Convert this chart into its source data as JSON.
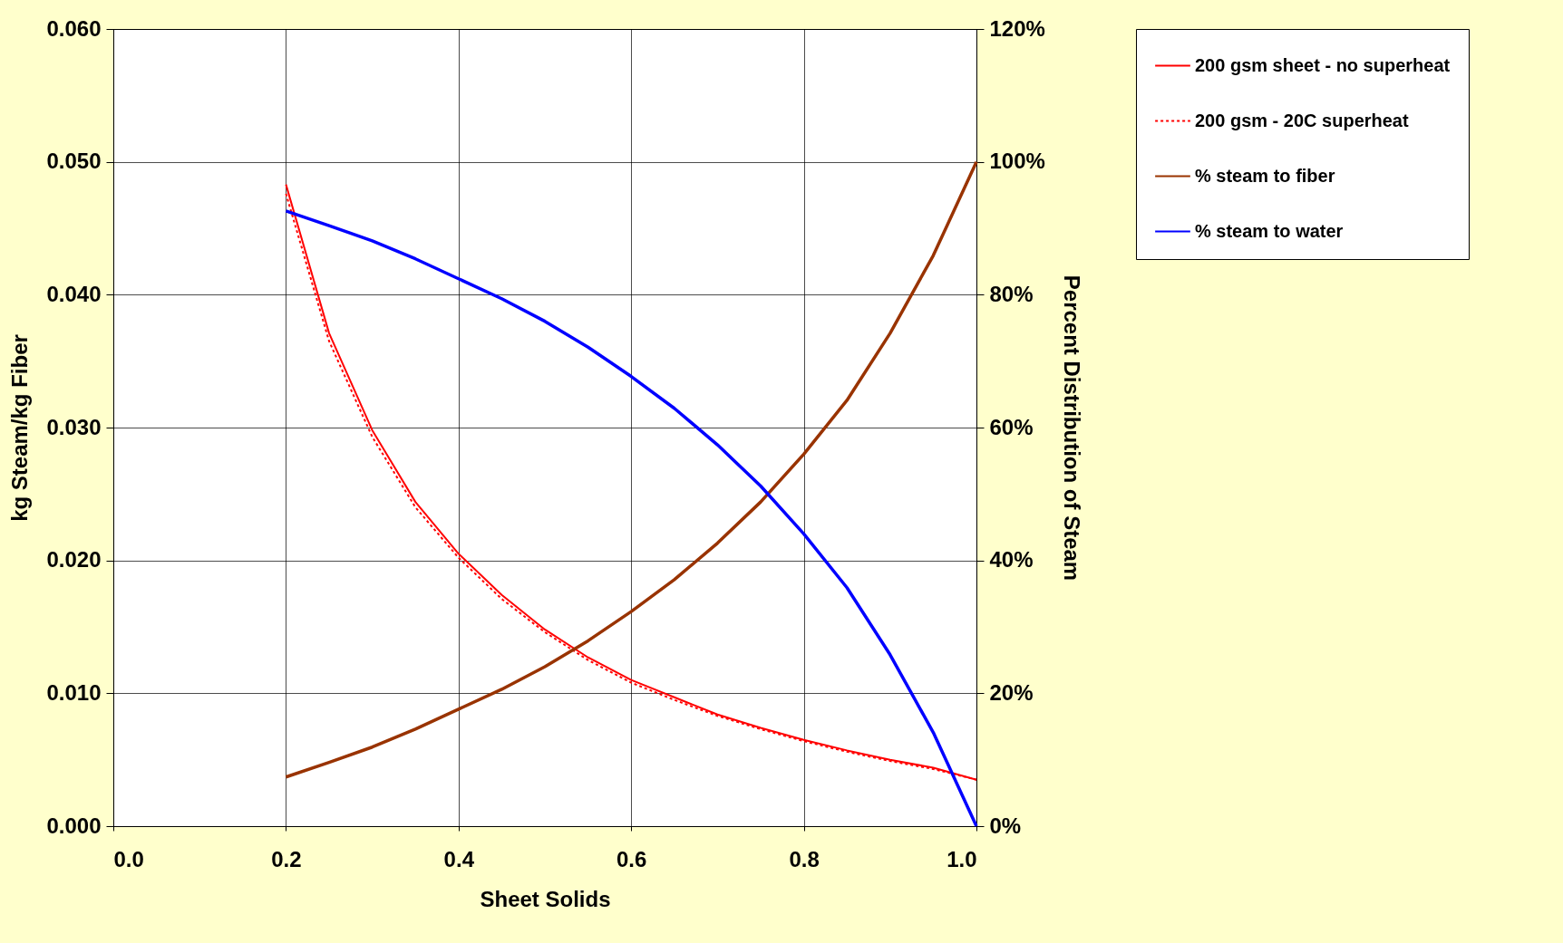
{
  "chart_data": {
    "type": "line",
    "xlabel": "Sheet Solids",
    "ylabel": "kg Steam/kg Fiber",
    "y2label": "Percent Distribution of Steam",
    "x": [
      0.2,
      0.25,
      0.3,
      0.35,
      0.4,
      0.45,
      0.5,
      0.55,
      0.6,
      0.65,
      0.7,
      0.75,
      0.8,
      0.85,
      0.9,
      0.95,
      1.0
    ],
    "series": [
      {
        "name": "200 gsm sheet - no superheat",
        "color": "#ff0000",
        "line_style": "solid",
        "values": [
          0.0483,
          0.0371,
          0.0298,
          0.0244,
          0.0205,
          0.0174,
          0.0148,
          0.0127,
          0.011,
          0.0097,
          0.0084,
          0.0074,
          0.0065,
          0.0057,
          0.005,
          0.0044,
          0.0035
        ]
      },
      {
        "name": "200 gsm - 20C superheat",
        "color": "#ff0000",
        "line_style": "dotted",
        "values": [
          0.0476,
          0.0365,
          0.0293,
          0.024,
          0.0202,
          0.0171,
          0.0146,
          0.0125,
          0.0108,
          0.0095,
          0.0083,
          0.0073,
          0.0064,
          0.0056,
          0.0049,
          0.0043,
          0.0035
        ]
      },
      {
        "name": "% steam to fiber",
        "color": "#993300",
        "axis": "y2",
        "line_style": "solid",
        "values": [
          7.4,
          9.6,
          11.9,
          14.6,
          17.6,
          20.6,
          24.0,
          27.9,
          32.3,
          37.1,
          42.6,
          48.8,
          56.0,
          64.1,
          74.2,
          85.9,
          100
        ]
      },
      {
        "name": "% steam to water",
        "color": "#0000ff",
        "axis": "y2",
        "line_style": "solid",
        "values": [
          92.6,
          90.4,
          88.1,
          85.4,
          82.4,
          79.4,
          76.0,
          72.1,
          67.7,
          62.9,
          57.4,
          51.2,
          44.0,
          35.9,
          25.8,
          14.1,
          0
        ]
      }
    ],
    "xlim": [
      0,
      1
    ],
    "xticks": [
      {
        "value": 0,
        "label": "0.0"
      },
      {
        "value": 0.2,
        "label": "0.2"
      },
      {
        "value": 0.4,
        "label": "0.4"
      },
      {
        "value": 0.6,
        "label": "0.6"
      },
      {
        "value": 0.8,
        "label": "0.8"
      },
      {
        "value": 1,
        "label": "1.0"
      }
    ],
    "ylim": [
      0,
      0.06
    ],
    "yticks": [
      {
        "value": 0,
        "label": "0.000"
      },
      {
        "value": 0.01,
        "label": "0.010"
      },
      {
        "value": 0.02,
        "label": "0.020"
      },
      {
        "value": 0.03,
        "label": "0.030"
      },
      {
        "value": 0.04,
        "label": "0.040"
      },
      {
        "value": 0.05,
        "label": "0.050"
      },
      {
        "value": 0.06,
        "label": "0.060"
      }
    ],
    "y2lim": [
      0,
      120
    ],
    "y2ticks": [
      {
        "value": 0,
        "label": "0%"
      },
      {
        "value": 20,
        "label": "20%"
      },
      {
        "value": 40,
        "label": "40%"
      },
      {
        "value": 60,
        "label": "60%"
      },
      {
        "value": 80,
        "label": "80%"
      },
      {
        "value": 100,
        "label": "100%"
      },
      {
        "value": 120,
        "label": "120%"
      }
    ],
    "grid": true,
    "legend": "right",
    "marker": "none"
  }
}
